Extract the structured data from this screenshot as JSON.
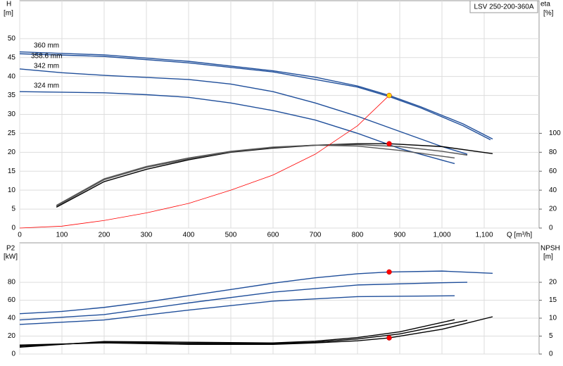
{
  "chart_data": [
    {
      "type": "line",
      "title": "LSV 250-200-360A",
      "xlabel": "Q [m³/h]",
      "ylabel": "H",
      "yunit": "[m]",
      "y2label": "eta",
      "y2unit": "[%]",
      "xlim": [
        0,
        1230
      ],
      "xticks": [
        0,
        100,
        200,
        300,
        400,
        500,
        600,
        700,
        800,
        900,
        {
          "value": 1000,
          "label": "1,000"
        },
        {
          "value": 1100,
          "label": "1,100"
        }
      ],
      "ylim": [
        0,
        60
      ],
      "yticks": [
        0,
        5,
        10,
        15,
        20,
        25,
        30,
        35,
        40,
        45,
        50
      ],
      "y2lim": [
        0,
        240
      ],
      "y2ticks": [
        0,
        20,
        40,
        60,
        80,
        100
      ],
      "grid": true,
      "series": [
        {
          "name": "360 mm",
          "color": "#1f4e9a",
          "x": [
            0,
            200,
            400,
            600,
            700,
            800,
            875,
            950,
            1050,
            1120
          ],
          "values": [
            46.5,
            45.7,
            44,
            41.5,
            39.8,
            37.5,
            35,
            32,
            27.5,
            23.5
          ]
        },
        {
          "name": "358.6 mm",
          "color": "#1f4e9a",
          "x": [
            0,
            200,
            400,
            600,
            800,
            875,
            950,
            1050,
            1115
          ],
          "values": [
            46,
            45.3,
            43.6,
            41.2,
            37.2,
            34.7,
            31.7,
            27,
            23.3
          ]
        },
        {
          "name": "342 mm",
          "color": "#1f4e9a",
          "x": [
            0,
            100,
            200,
            400,
            500,
            600,
            700,
            800,
            900,
            1000,
            1060
          ],
          "values": [
            42,
            41,
            40.3,
            39.2,
            38,
            36,
            33,
            29.5,
            25.5,
            21.5,
            19.5
          ]
        },
        {
          "name": "324 mm",
          "color": "#1f4e9a",
          "x": [
            0,
            200,
            300,
            400,
            500,
            600,
            700,
            800,
            900,
            1030
          ],
          "values": [
            36,
            35.7,
            35.2,
            34.5,
            33,
            31,
            28.5,
            25,
            21,
            17
          ]
        },
        {
          "color": "#000000",
          "axis": "y2",
          "x": [
            87,
            200,
            300,
            400,
            500,
            600,
            700,
            800,
            875,
            1000,
            1120
          ],
          "values": [
            22,
            49,
            62,
            72,
            80,
            84.4,
            87.4,
            89,
            89,
            86,
            78.5
          ]
        },
        {
          "color": "#555555",
          "axis": "y2",
          "x": [
            87,
            200,
            300,
            400,
            500,
            600,
            700,
            800,
            900,
            1000,
            1060
          ],
          "values": [
            23,
            51,
            64,
            73,
            80.5,
            85,
            87.5,
            88,
            86,
            81,
            77
          ]
        },
        {
          "color": "#555555",
          "axis": "y2",
          "x": [
            87,
            200,
            300,
            400,
            500,
            600,
            700,
            800,
            900,
            1030
          ],
          "values": [
            24,
            52,
            65,
            74,
            81,
            85.5,
            87.5,
            86.5,
            82,
            74
          ]
        },
        {
          "color": "#ff0000",
          "x": [
            0,
            100,
            200,
            300,
            400,
            500,
            600,
            700,
            800,
            875
          ],
          "values": [
            0,
            0.5,
            2,
            4,
            6.5,
            10,
            14,
            19.5,
            27,
            35
          ]
        }
      ],
      "duty_points": [
        {
          "x": 875,
          "value": 35,
          "color": "#ffd700"
        },
        {
          "x": 875,
          "value": 89,
          "axis": "y2",
          "color": "#ff0000"
        }
      ]
    },
    {
      "type": "line",
      "ylabel": "P2",
      "yunit": "[kW]",
      "y2label": "NPSH",
      "y2unit": "[m]",
      "xlim": [
        0,
        1230
      ],
      "xticks": [
        0,
        100,
        200,
        300,
        400,
        500,
        600,
        700,
        800,
        900,
        1000,
        1100
      ],
      "ylim": [
        0,
        124
      ],
      "yticks": [
        0,
        20,
        40,
        60,
        80
      ],
      "y2lim": [
        0,
        31
      ],
      "y2ticks": [
        0,
        5,
        10,
        15,
        20
      ],
      "grid": true,
      "series": [
        {
          "color": "#1f4e9a",
          "x": [
            0,
            100,
            200,
            300,
            400,
            500,
            600,
            700,
            800,
            875,
            1000,
            1120
          ],
          "values": [
            45,
            47.5,
            52,
            58,
            65,
            72,
            79,
            85,
            89.5,
            91.5,
            92.5,
            90
          ]
        },
        {
          "color": "#1f4e9a",
          "x": [
            0,
            200,
            400,
            600,
            800,
            1000,
            1060
          ],
          "values": [
            38,
            44,
            57,
            69,
            77,
            79.5,
            80
          ]
        },
        {
          "color": "#1f4e9a",
          "x": [
            0,
            200,
            400,
            600,
            800,
            1030
          ],
          "values": [
            33,
            38,
            49,
            59,
            64,
            65
          ]
        },
        {
          "color": "#000000",
          "axis": "y2",
          "x": [
            0,
            200,
            400,
            600,
            700,
            800,
            875,
            1000,
            1120
          ],
          "values": [
            2.5,
            3.1,
            2.7,
            2.7,
            3.1,
            3.7,
            4.5,
            6.9,
            10.4
          ]
        },
        {
          "color": "#000000",
          "axis": "y2",
          "x": [
            0,
            200,
            400,
            600,
            700,
            800,
            900,
            1060
          ],
          "values": [
            2.2,
            3.3,
            3,
            2.9,
            3.3,
            4.2,
            5.6,
            9.4
          ]
        },
        {
          "color": "#000000",
          "axis": "y2",
          "x": [
            0,
            200,
            400,
            600,
            700,
            800,
            900,
            1030
          ],
          "values": [
            1.9,
            3.5,
            3.3,
            3.1,
            3.6,
            4.6,
            6.2,
            9.6
          ]
        }
      ],
      "duty_points": [
        {
          "x": 875,
          "value": 91.5,
          "color": "#ff0000"
        },
        {
          "x": 875,
          "value": 4.5,
          "axis": "y2",
          "color": "#ff0000"
        }
      ]
    }
  ]
}
